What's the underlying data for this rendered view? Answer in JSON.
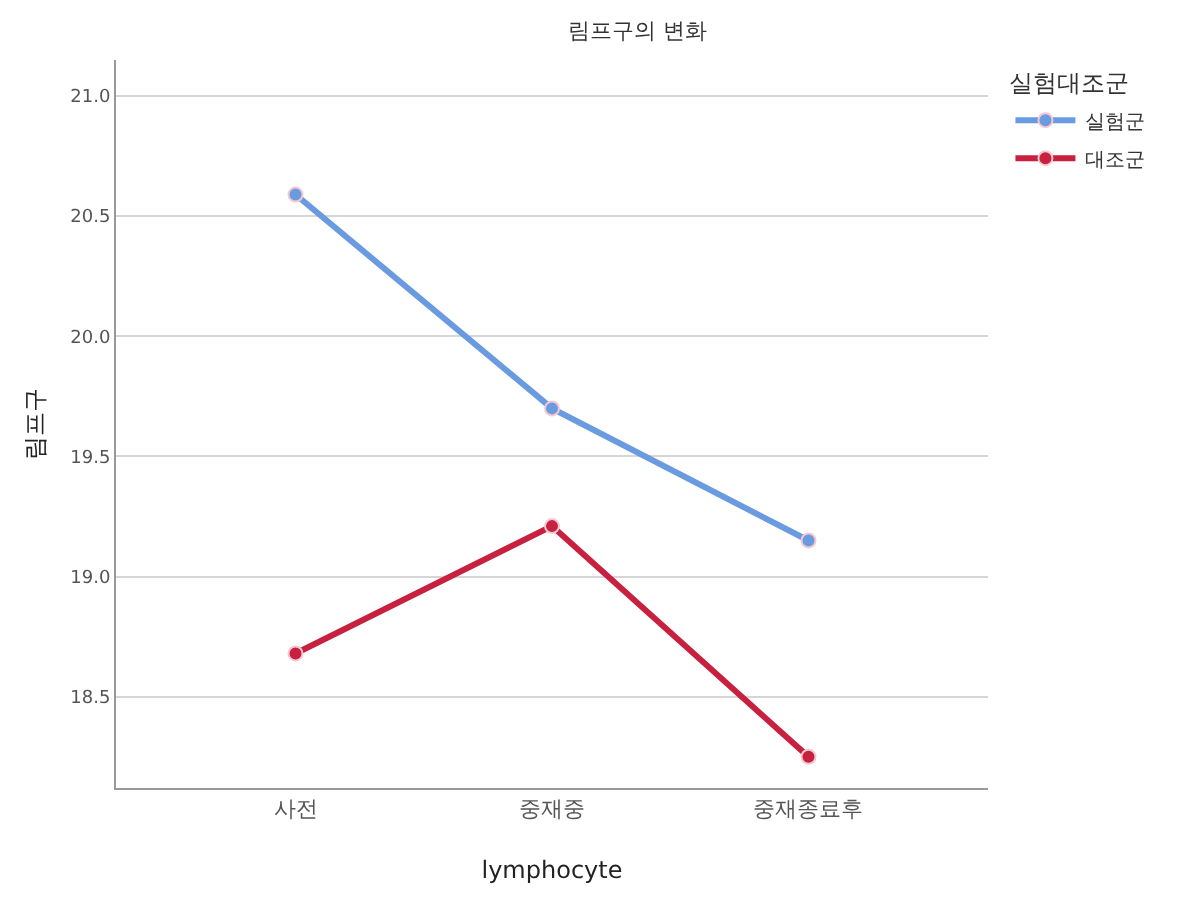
{
  "chart_data": {
    "type": "line",
    "title": "림프구의 변화",
    "xlabel": "lymphocyte",
    "ylabel": "림프구",
    "legend_title": "실험대조군",
    "categories": [
      "사전",
      "중재중",
      "중재종료후"
    ],
    "series": [
      {
        "name": "실험군",
        "color": "#6a9be0",
        "values": [
          20.59,
          19.7,
          19.15
        ]
      },
      {
        "name": "대조군",
        "color": "#c8203f",
        "values": [
          18.68,
          19.21,
          18.25
        ]
      }
    ],
    "ylim": [
      18.12,
      21.15
    ],
    "yticks": [
      {
        "value": 18.5,
        "label": "18.5"
      },
      {
        "value": 19,
        "label": "19.0"
      },
      {
        "value": 19.5,
        "label": "19.5"
      },
      {
        "value": 20,
        "label": "20.0"
      },
      {
        "value": 20.5,
        "label": "20.5"
      },
      {
        "value": 21,
        "label": "21.0"
      }
    ],
    "grid": "y",
    "legend": "top right",
    "marker": "circle",
    "line_style": "solid"
  }
}
